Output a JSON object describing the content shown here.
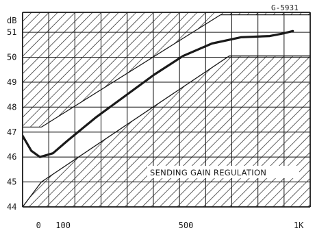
{
  "figure_code": "G-5931",
  "chart_data": {
    "type": "line",
    "ylabel": "dB",
    "y_ticks": [
      "44",
      "45",
      "46",
      "47",
      "48",
      "49",
      "50",
      "51"
    ],
    "ylim": [
      44,
      51.8
    ],
    "x_tick_labels": [
      "0",
      "100",
      "500",
      "1K"
    ],
    "grid": true,
    "annotations": [
      "SENDING GAIN REGULATION"
    ],
    "series": [
      {
        "values": [
          [
            -0.55,
            46.85
          ],
          [
            -0.25,
            46.25
          ],
          [
            0.05,
            46.0
          ],
          [
            0.5,
            46.15
          ],
          [
            1.0,
            46.65
          ],
          [
            2.0,
            47.6
          ],
          [
            3.0,
            48.45
          ],
          [
            4.0,
            49.3
          ],
          [
            5.0,
            50.05
          ],
          [
            6.0,
            50.55
          ],
          [
            7.0,
            50.8
          ],
          [
            8.0,
            50.85
          ],
          [
            8.45,
            50.95
          ],
          [
            8.8,
            51.05
          ]
        ]
      }
    ],
    "regions": {
      "upper_limit": [
        [
          -0.55,
          47.2
        ],
        [
          0.1,
          47.2
        ],
        [
          6.3,
          51.7
        ],
        [
          9.4,
          51.7
        ]
      ],
      "lower_limit": [
        [
          -0.55,
          44.0
        ],
        [
          0.1,
          45.0
        ],
        [
          6.6,
          50.05
        ],
        [
          9.4,
          50.05
        ]
      ]
    }
  }
}
